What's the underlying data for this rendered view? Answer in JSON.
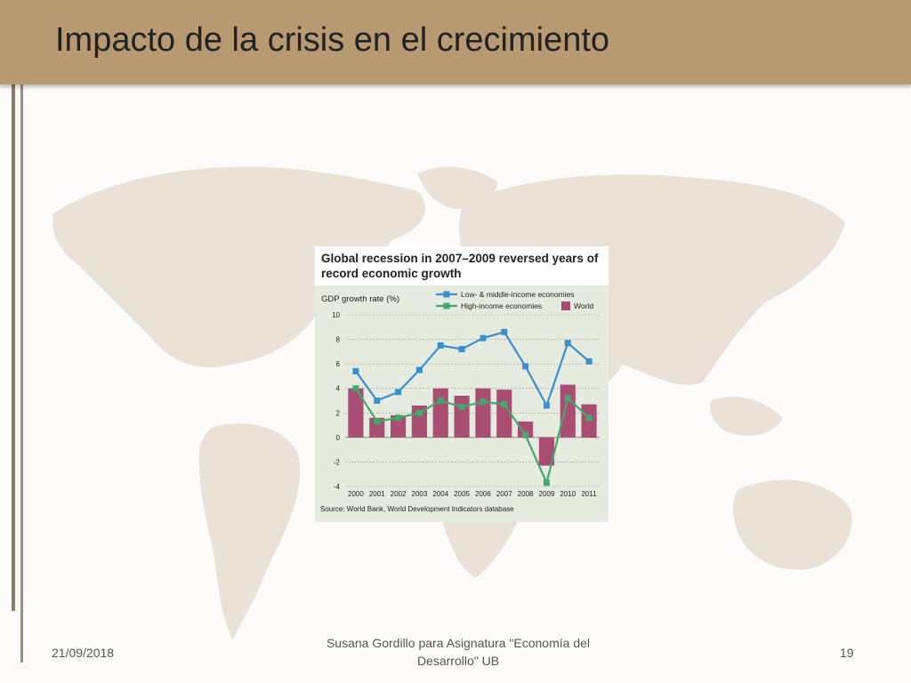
{
  "slide": {
    "title": "Impacto de la crisis en el crecimiento",
    "footer_date": "21/09/2018",
    "footer_center": "Susana Gordillo para Asignatura \"Economía del Desarrollo\" UB",
    "page_number": "19"
  },
  "colors": {
    "title_bar": "#b89a72",
    "map_land": "#e8ddd0",
    "low_middle": "#3a8fd0",
    "high_income": "#43a86a",
    "world": "#a94d72",
    "panel_bg": "#e6ebdf"
  },
  "chart_data": {
    "type": "bar",
    "title": "Global recession in 2007–2009 reversed years of record economic growth",
    "ylabel": "GDP growth rate (%)",
    "xlabel": "",
    "source": "Source: World Bank, World Development Indicators database",
    "categories": [
      "2000",
      "2001",
      "2002",
      "2003",
      "2004",
      "2005",
      "2006",
      "2007",
      "2008",
      "2009",
      "2010",
      "2011"
    ],
    "ylim": [
      -4,
      10
    ],
    "yticks": [
      -4,
      -2,
      0,
      2,
      4,
      6,
      8,
      10
    ],
    "grid": true,
    "legend": "top",
    "series": [
      {
        "name": "World",
        "kind": "bar",
        "color": "#a94d72",
        "values": [
          4.0,
          1.6,
          1.8,
          2.6,
          4.0,
          3.4,
          4.0,
          3.9,
          1.3,
          -2.3,
          4.3,
          2.7
        ]
      },
      {
        "name": "Low- & middle-income economies",
        "kind": "line",
        "color": "#3a8fd0",
        "values": [
          5.4,
          3.0,
          3.7,
          5.5,
          7.5,
          7.2,
          8.1,
          8.6,
          5.8,
          2.6,
          7.7,
          6.2
        ]
      },
      {
        "name": "High-income economies",
        "kind": "line",
        "color": "#43a86a",
        "values": [
          4.0,
          1.3,
          1.6,
          2.0,
          3.0,
          2.5,
          2.9,
          2.7,
          0.2,
          -3.7,
          3.2,
          1.6
        ]
      }
    ]
  }
}
